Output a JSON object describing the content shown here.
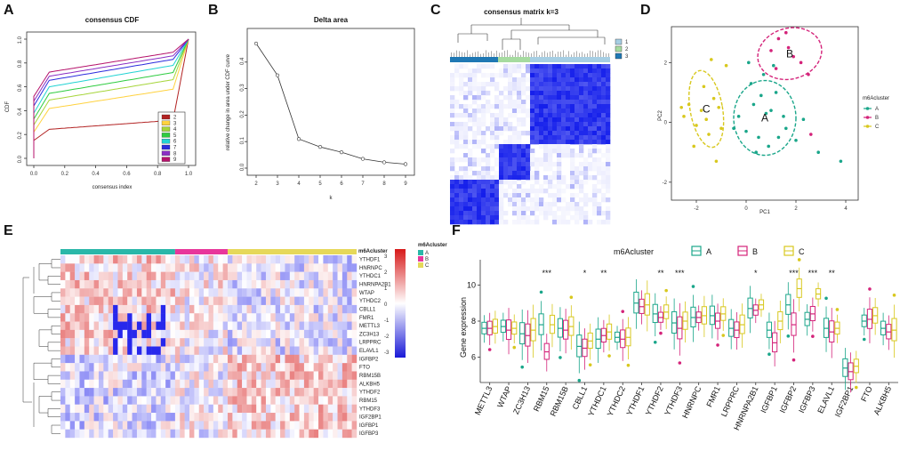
{
  "panel_labels": [
    "A",
    "B",
    "C",
    "D",
    "E",
    "F"
  ],
  "chart_data": [
    {
      "panel": "A",
      "type": "line",
      "title": "consensus CDF",
      "xlabel": "consensus index",
      "ylabel": "CDF",
      "xlim": [
        0,
        1
      ],
      "ylim": [
        0,
        1
      ],
      "xticks": [
        "0.0",
        "0.2",
        "0.4",
        "0.6",
        "0.8",
        "1.0"
      ],
      "yticks": [
        "0.0",
        "0.2",
        "0.4",
        "0.6",
        "0.8",
        "1.0"
      ],
      "legend": [
        "2",
        "3",
        "4",
        "5",
        "6",
        "7",
        "8",
        "9"
      ],
      "legend_position": "bottom-right",
      "colors": [
        "#b22222",
        "#ffd23f",
        "#a6d53a",
        "#2ecc40",
        "#22d3d3",
        "#2c2cdd",
        "#8b2fc4",
        "#b5126b"
      ],
      "start_values": [
        0.15,
        0.22,
        0.28,
        0.33,
        0.38,
        0.44,
        0.48,
        0.52
      ],
      "mid_values": [
        0.32,
        0.58,
        0.66,
        0.72,
        0.78,
        0.83,
        0.86,
        0.89
      ]
    },
    {
      "panel": "B",
      "type": "line",
      "title": "Delta area",
      "xlabel": "k",
      "ylabel": "relative change in area under CDF curve",
      "x": [
        2,
        3,
        4,
        5,
        6,
        7,
        8,
        9
      ],
      "y": [
        0.47,
        0.35,
        0.11,
        0.08,
        0.06,
        0.035,
        0.022,
        0.015
      ],
      "xticks": [
        "2",
        "3",
        "4",
        "5",
        "6",
        "7",
        "8",
        "9"
      ],
      "yticks": [
        "0.0",
        "0.1",
        "0.2",
        "0.3",
        "0.4"
      ],
      "ylim": [
        0,
        0.5
      ]
    },
    {
      "panel": "C",
      "type": "heatmap",
      "title": "consensus matrix k=3",
      "legend": [
        "1",
        "2",
        "3"
      ],
      "cluster_colors": [
        "#1f78b4",
        "#a6dba0",
        "#a6cee3"
      ]
    },
    {
      "panel": "D",
      "type": "scatter",
      "xlabel": "PC1",
      "ylabel": "PC2",
      "xlim": [
        -3,
        4.5
      ],
      "ylim": [
        -2.6,
        3.2
      ],
      "xticks": [
        "-2",
        "0",
        "2",
        "4"
      ],
      "yticks": [
        "-2",
        "0",
        "2"
      ],
      "legend_title": "m6Acluster",
      "legend": [
        "A",
        "B",
        "C"
      ],
      "colors": [
        "#1aa68a",
        "#d4237a",
        "#d8c81e"
      ],
      "series": [
        {
          "name": "A",
          "points": [
            [
              0.3,
              0.6
            ],
            [
              0.8,
              0.3
            ],
            [
              1.2,
              1.0
            ],
            [
              0.5,
              -0.5
            ],
            [
              1.5,
              0.2
            ],
            [
              0.0,
              -0.3
            ],
            [
              0.9,
              -0.8
            ],
            [
              1.6,
              -0.2
            ],
            [
              0.2,
              1.3
            ],
            [
              0.7,
              1.6
            ],
            [
              2.0,
              -0.6
            ],
            [
              -0.3,
              0.2
            ],
            [
              1.0,
              0.4
            ],
            [
              0.4,
              -1.0
            ],
            [
              1.3,
              -0.5
            ],
            [
              -0.5,
              -0.2
            ],
            [
              2.3,
              0.1
            ],
            [
              3.8,
              -1.3
            ],
            [
              2.9,
              -1.0
            ],
            [
              0.6,
              0.9
            ],
            [
              1.1,
              1.9
            ],
            [
              0.1,
              2.0
            ]
          ]
        },
        {
          "name": "B",
          "points": [
            [
              1.3,
              2.8
            ],
            [
              1.9,
              2.2
            ],
            [
              1.0,
              2.4
            ],
            [
              2.2,
              2.0
            ],
            [
              1.6,
              3.0
            ],
            [
              2.5,
              1.6
            ],
            [
              1.2,
              1.8
            ],
            [
              2.6,
              -0.4
            ],
            [
              1.7,
              2.5
            ]
          ]
        },
        {
          "name": "C",
          "points": [
            [
              -2.3,
              0.6
            ],
            [
              -1.8,
              0.4
            ],
            [
              -1.6,
              0.1
            ],
            [
              -2.0,
              -0.1
            ],
            [
              -1.3,
              0.8
            ],
            [
              -1.1,
              0.5
            ],
            [
              -1.5,
              -0.4
            ],
            [
              -2.5,
              0.2
            ],
            [
              -1.7,
              1.2
            ],
            [
              -1.0,
              -0.2
            ],
            [
              -2.1,
              -0.8
            ],
            [
              -1.2,
              -1.3
            ],
            [
              -0.8,
              1.9
            ],
            [
              -1.4,
              2.1
            ],
            [
              -2.6,
              0.5
            ]
          ]
        }
      ],
      "ellipse_labels": [
        "A",
        "B",
        "C"
      ]
    },
    {
      "panel": "E",
      "type": "heatmap",
      "annotation_title": "m6Acluster",
      "annotation_legend": [
        "A",
        "B",
        "C"
      ],
      "annotation_colors": [
        "#2ab7a9",
        "#e8369b",
        "#e6d85a"
      ],
      "scale_ticks": [
        "3",
        "2",
        "1",
        "0",
        "-1",
        "-2",
        "-3"
      ],
      "genes": [
        "YTHDF1",
        "HNRNPC",
        "YTHDC1",
        "HNRNPA2B1",
        "WTAP",
        "YTHDC2",
        "CBLL1",
        "FMR1",
        "METTL3",
        "ZC3H13",
        "LRPPRC",
        "ELAVL1",
        "IGFBP2",
        "FTO",
        "RBM15B",
        "ALKBH5",
        "YTHDF2",
        "RBM15",
        "YTHDF3",
        "IGF2BP1",
        "IGFBP1",
        "IGFBP3"
      ]
    },
    {
      "panel": "F",
      "type": "box",
      "legend_title": "m6Acluster",
      "legend": [
        "A",
        "B",
        "C"
      ],
      "colors": [
        "#1aa68a",
        "#d4237a",
        "#d8c81e"
      ],
      "ylabel": "Gene expression",
      "yticks": [
        "6",
        "8",
        "10"
      ],
      "ylim": [
        4.6,
        11.4
      ],
      "categories": [
        "METTL3",
        "WTAP",
        "ZC3H13",
        "RBM15",
        "RBM15B",
        "CBLL1",
        "YTHDC1",
        "YTHDC2",
        "YTHDF1",
        "YTHDF2",
        "YTHDF3",
        "HNRNPC",
        "FMR1",
        "LRPPRC",
        "HNRNPA2B1",
        "IGFBP1",
        "IGFBP2",
        "IGFBP3",
        "ELAVL1",
        "IGF2BP1",
        "FTO",
        "ALKBH5"
      ],
      "significance": [
        "",
        "",
        "",
        "***",
        "",
        "*",
        "**",
        "",
        "",
        "**",
        "***",
        "",
        "",
        "",
        "*",
        "",
        "***",
        "***",
        "**",
        "",
        "",
        ""
      ],
      "medians": [
        [
          7.6,
          7.6,
          7.7
        ],
        [
          7.7,
          7.5,
          7.6
        ],
        [
          7.3,
          7.2,
          7.5
        ],
        [
          7.8,
          6.3,
          7.8
        ],
        [
          7.6,
          7.5,
          7.7
        ],
        [
          6.6,
          6.5,
          6.9
        ],
        [
          7.0,
          7.2,
          7.4
        ],
        [
          7.1,
          7.0,
          7.1
        ],
        [
          9.0,
          8.8,
          8.9
        ],
        [
          8.4,
          8.2,
          8.5
        ],
        [
          7.9,
          7.6,
          8.0
        ],
        [
          8.2,
          8.2,
          8.3
        ],
        [
          8.3,
          8.0,
          8.4
        ],
        [
          7.6,
          7.5,
          7.8
        ],
        [
          8.7,
          8.6,
          8.9
        ],
        [
          7.5,
          6.8,
          8.0
        ],
        [
          8.9,
          7.8,
          9.8
        ],
        [
          8.1,
          8.4,
          9.5
        ],
        [
          7.6,
          7.4,
          7.6
        ],
        [
          5.4,
          5.2,
          5.5
        ],
        [
          8.0,
          8.1,
          8.3
        ],
        [
          7.6,
          7.4,
          7.5
        ]
      ]
    }
  ]
}
